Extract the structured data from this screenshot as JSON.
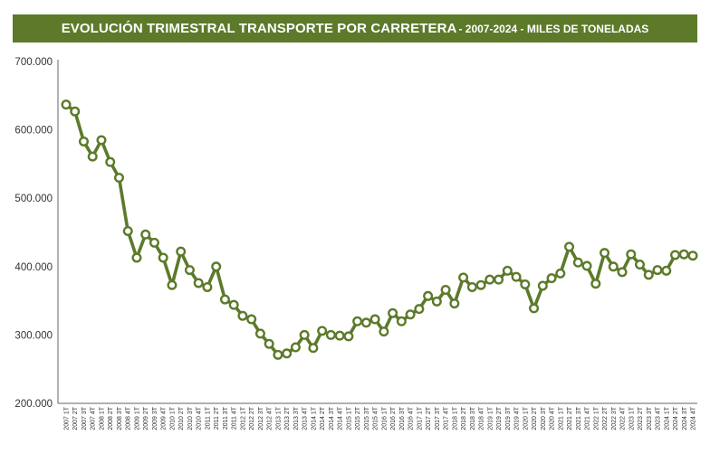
{
  "chart_data": {
    "type": "line",
    "title": "EVOLUCIÓN TRIMESTRAL TRANSPORTE POR CARRETERA",
    "subtitle": " - 2007-2024 - MILES DE TONELADAS",
    "xlabel": "",
    "ylabel": "",
    "ylim": [
      200000,
      700000
    ],
    "yticks": [
      "200.000",
      "300.000",
      "400.000",
      "500.000",
      "600.000",
      "700.000"
    ],
    "ytick_values": [
      200000,
      300000,
      400000,
      500000,
      600000,
      700000
    ],
    "grid": false,
    "categories": [
      "2007 1T",
      "2007 2T",
      "2007 3T",
      "2007 4T",
      "2008 1T",
      "2008 2T",
      "2008 3T",
      "2008 4T",
      "2009 1T",
      "2009 2T",
      "2009 3T",
      "2009 4T",
      "2010 1T",
      "2010 2T",
      "2010 3T",
      "2010 4T",
      "2011 1T",
      "2011 2T",
      "2011 3T",
      "2011 4T",
      "2012 1T",
      "2012 2T",
      "2012 3T",
      "2012 4T",
      "2013 1T",
      "2013 2T",
      "2013 3T",
      "2013 4T",
      "2014 1T",
      "2014 2T",
      "2014 3T",
      "2014 4T",
      "2015 1T",
      "2015 2T",
      "2015 3T",
      "2015 4T",
      "2016 1T",
      "2016 2T",
      "2016 3T",
      "2016 4T",
      "2017 1T",
      "2017 2T",
      "2017 3T",
      "2017 4T",
      "2018 1T",
      "2018 2T",
      "2018 3T",
      "2018 4T",
      "2019 1T",
      "2019 2T",
      "2019 3T",
      "2019 4T",
      "2020 1T",
      "2020 2T",
      "2020 3T",
      "2020 4T",
      "2021 1T",
      "2021 2T",
      "2021 3T",
      "2021 4T",
      "2022 1T",
      "2022 2T",
      "2022 3T",
      "2022 4T",
      "2023 1T",
      "2023 2T",
      "2023 3T",
      "2023 4T",
      "2024 1T",
      "2024 2T",
      "2024 3T",
      "2024 4T"
    ],
    "series": [
      {
        "name": "Miles de toneladas",
        "color": "#5c7a2a",
        "values": [
          637000,
          627000,
          583000,
          561000,
          585000,
          553000,
          530000,
          452000,
          413000,
          447000,
          435000,
          413000,
          373000,
          422000,
          395000,
          376000,
          370000,
          400000,
          352000,
          344000,
          328000,
          323000,
          302000,
          287000,
          271000,
          273000,
          282000,
          300000,
          281000,
          306000,
          300000,
          299000,
          298000,
          320000,
          318000,
          323000,
          305000,
          332000,
          320000,
          330000,
          338000,
          357000,
          349000,
          366000,
          346000,
          384000,
          370000,
          373000,
          381000,
          381000,
          394000,
          385000,
          374000,
          339000,
          372000,
          383000,
          390000,
          429000,
          406000,
          401000,
          375000,
          420000,
          400000,
          392000,
          418000,
          403000,
          388000,
          395000,
          394000,
          417000,
          418000,
          416000
        ]
      }
    ]
  }
}
